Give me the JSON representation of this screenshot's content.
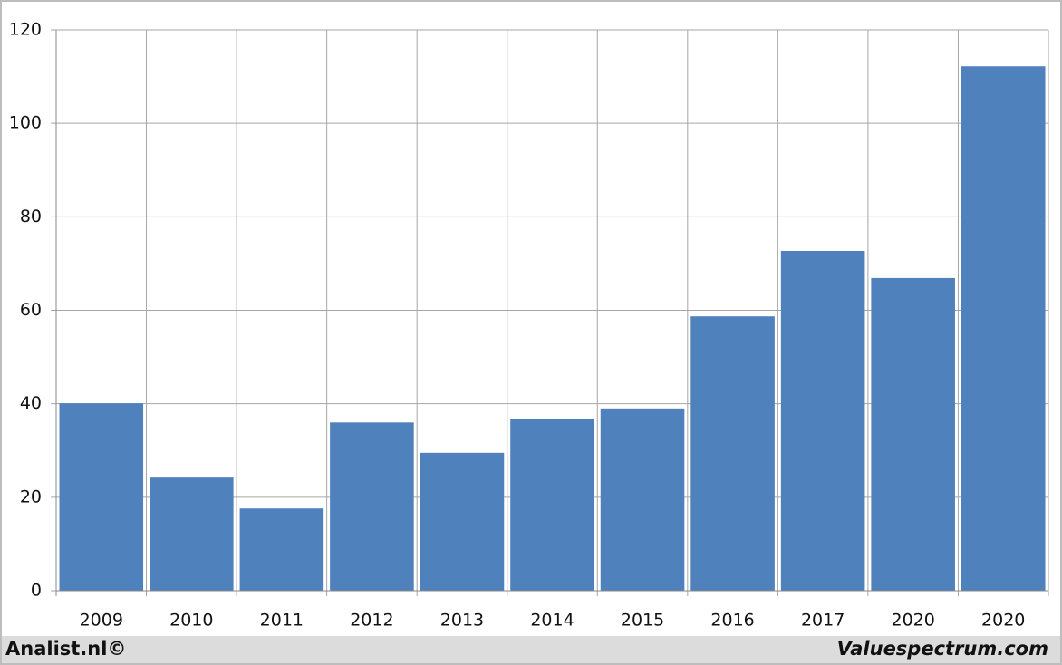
{
  "chart_data": {
    "type": "bar",
    "categories": [
      "2009",
      "2010",
      "2011",
      "2012",
      "2013",
      "2014",
      "2015",
      "2016",
      "2017",
      "2020",
      "2020"
    ],
    "values": [
      40.1,
      24.2,
      17.6,
      36.0,
      29.5,
      36.8,
      39.0,
      58.7,
      72.7,
      66.9,
      112.2
    ],
    "color": "#4f81bd",
    "ylim": [
      0,
      120
    ],
    "yticks": [
      0,
      20,
      40,
      60,
      80,
      100,
      120
    ],
    "grid": true
  },
  "footer": {
    "left": "Analist.nl©",
    "right": "Valuespectrum.com"
  }
}
